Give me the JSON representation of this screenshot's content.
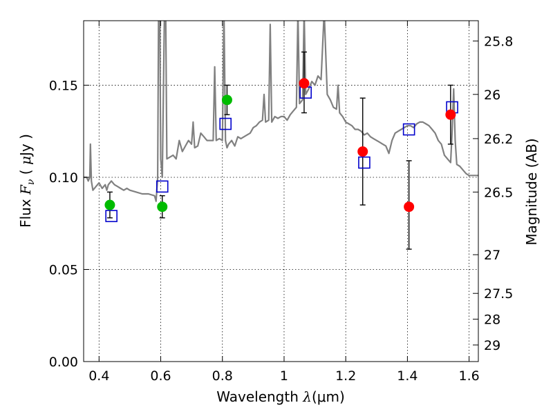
{
  "chart_data": {
    "type": "scatter",
    "xlabel": "Wavelength  λ (μm)",
    "xlabel_parts": {
      "text": "Wavelength  ",
      "symbol": "λ",
      "unit": "(μm)"
    },
    "ylabel": "Flux  Fν  ( μJy )",
    "ylabel_parts": {
      "text": "Flux  ",
      "symbol": "F",
      "subscript": "ν",
      "unit_open": " ( ",
      "unit_mu": "μ",
      "unit_rest": "Jy )"
    },
    "y2label": "Magnitude (AB)",
    "xlim": [
      0.35,
      1.63
    ],
    "ylim": [
      0.0,
      0.185
    ],
    "xticks": [
      0.4,
      0.6,
      0.8,
      1.0,
      1.2,
      1.4,
      1.6
    ],
    "xtick_labels": [
      "0.4",
      "0.6",
      "0.8",
      "1",
      "1.2",
      "1.4",
      "1.6"
    ],
    "yticks": [
      0.0,
      0.05,
      0.1,
      0.15
    ],
    "ytick_labels": [
      "0.00",
      "0.05",
      "0.10",
      "0.15"
    ],
    "y2ticks": [
      {
        "label": "25.8",
        "flux": 0.174
      },
      {
        "label": "26",
        "flux": 0.145
      },
      {
        "label": "26.2",
        "flux": 0.121
      },
      {
        "label": "26.5",
        "flux": 0.092
      },
      {
        "label": "27",
        "flux": 0.058
      },
      {
        "label": "27.5",
        "flux": 0.037
      },
      {
        "label": "28",
        "flux": 0.023
      },
      {
        "label": "29",
        "flux": 0.009
      }
    ],
    "grid": true,
    "series": [
      {
        "kind": "line",
        "color": "#808080",
        "points": [
          [
            0.35,
            0.1
          ],
          [
            0.36,
            0.1
          ],
          [
            0.365,
            0.098
          ],
          [
            0.37,
            0.1
          ],
          [
            0.372,
            0.118
          ],
          [
            0.375,
            0.098
          ],
          [
            0.38,
            0.093
          ],
          [
            0.39,
            0.095
          ],
          [
            0.4,
            0.097
          ],
          [
            0.41,
            0.094
          ],
          [
            0.42,
            0.096
          ],
          [
            0.425,
            0.093
          ],
          [
            0.43,
            0.096
          ],
          [
            0.435,
            0.097
          ],
          [
            0.44,
            0.098
          ],
          [
            0.45,
            0.096
          ],
          [
            0.46,
            0.095
          ],
          [
            0.47,
            0.094
          ],
          [
            0.48,
            0.093
          ],
          [
            0.49,
            0.094
          ],
          [
            0.5,
            0.093
          ],
          [
            0.52,
            0.092
          ],
          [
            0.54,
            0.091
          ],
          [
            0.56,
            0.091
          ],
          [
            0.58,
            0.09
          ],
          [
            0.585,
            0.087
          ],
          [
            0.59,
            0.1
          ],
          [
            0.593,
            0.19
          ],
          [
            0.597,
            0.19
          ],
          [
            0.6,
            0.11
          ],
          [
            0.605,
            0.1
          ],
          [
            0.612,
            0.19
          ],
          [
            0.616,
            0.19
          ],
          [
            0.62,
            0.11
          ],
          [
            0.64,
            0.112
          ],
          [
            0.65,
            0.11
          ],
          [
            0.66,
            0.12
          ],
          [
            0.67,
            0.114
          ],
          [
            0.68,
            0.117
          ],
          [
            0.69,
            0.12
          ],
          [
            0.7,
            0.118
          ],
          [
            0.705,
            0.13
          ],
          [
            0.71,
            0.116
          ],
          [
            0.72,
            0.117
          ],
          [
            0.73,
            0.124
          ],
          [
            0.74,
            0.122
          ],
          [
            0.75,
            0.12
          ],
          [
            0.76,
            0.12
          ],
          [
            0.77,
            0.12
          ],
          [
            0.775,
            0.16
          ],
          [
            0.78,
            0.12
          ],
          [
            0.79,
            0.121
          ],
          [
            0.8,
            0.12
          ],
          [
            0.805,
            0.19
          ],
          [
            0.81,
            0.12
          ],
          [
            0.815,
            0.116
          ],
          [
            0.82,
            0.118
          ],
          [
            0.83,
            0.12
          ],
          [
            0.84,
            0.117
          ],
          [
            0.85,
            0.122
          ],
          [
            0.86,
            0.121
          ],
          [
            0.87,
            0.122
          ],
          [
            0.88,
            0.123
          ],
          [
            0.89,
            0.124
          ],
          [
            0.9,
            0.127
          ],
          [
            0.91,
            0.128
          ],
          [
            0.92,
            0.13
          ],
          [
            0.93,
            0.131
          ],
          [
            0.935,
            0.145
          ],
          [
            0.94,
            0.13
          ],
          [
            0.95,
            0.131
          ],
          [
            0.955,
            0.183
          ],
          [
            0.96,
            0.13
          ],
          [
            0.97,
            0.133
          ],
          [
            0.98,
            0.132
          ],
          [
            0.99,
            0.133
          ],
          [
            1.0,
            0.133
          ],
          [
            1.01,
            0.131
          ],
          [
            1.02,
            0.134
          ],
          [
            1.03,
            0.136
          ],
          [
            1.04,
            0.138
          ],
          [
            1.045,
            0.19
          ],
          [
            1.05,
            0.14
          ],
          [
            1.06,
            0.142
          ],
          [
            1.065,
            0.19
          ],
          [
            1.07,
            0.145
          ],
          [
            1.08,
            0.148
          ],
          [
            1.09,
            0.152
          ],
          [
            1.1,
            0.15
          ],
          [
            1.11,
            0.155
          ],
          [
            1.12,
            0.153
          ],
          [
            1.13,
            0.19
          ],
          [
            1.14,
            0.145
          ],
          [
            1.15,
            0.142
          ],
          [
            1.16,
            0.138
          ],
          [
            1.17,
            0.137
          ],
          [
            1.175,
            0.15
          ],
          [
            1.18,
            0.135
          ],
          [
            1.19,
            0.133
          ],
          [
            1.2,
            0.13
          ],
          [
            1.21,
            0.129
          ],
          [
            1.22,
            0.128
          ],
          [
            1.23,
            0.126
          ],
          [
            1.24,
            0.126
          ],
          [
            1.25,
            0.125
          ],
          [
            1.26,
            0.123
          ],
          [
            1.27,
            0.124
          ],
          [
            1.28,
            0.122
          ],
          [
            1.29,
            0.121
          ],
          [
            1.3,
            0.12
          ],
          [
            1.31,
            0.119
          ],
          [
            1.32,
            0.118
          ],
          [
            1.33,
            0.117
          ],
          [
            1.34,
            0.113
          ],
          [
            1.35,
            0.12
          ],
          [
            1.36,
            0.124
          ],
          [
            1.37,
            0.125
          ],
          [
            1.38,
            0.126
          ],
          [
            1.39,
            0.127
          ],
          [
            1.4,
            0.128
          ],
          [
            1.41,
            0.128
          ],
          [
            1.42,
            0.127
          ],
          [
            1.43,
            0.129
          ],
          [
            1.44,
            0.13
          ],
          [
            1.45,
            0.13
          ],
          [
            1.46,
            0.129
          ],
          [
            1.47,
            0.128
          ],
          [
            1.48,
            0.126
          ],
          [
            1.49,
            0.124
          ],
          [
            1.5,
            0.12
          ],
          [
            1.51,
            0.118
          ],
          [
            1.52,
            0.112
          ],
          [
            1.53,
            0.11
          ],
          [
            1.54,
            0.108
          ],
          [
            1.545,
            0.125
          ],
          [
            1.55,
            0.148
          ],
          [
            1.555,
            0.12
          ],
          [
            1.56,
            0.107
          ],
          [
            1.57,
            0.106
          ],
          [
            1.58,
            0.104
          ],
          [
            1.59,
            0.102
          ],
          [
            1.6,
            0.101
          ],
          [
            1.61,
            0.101
          ],
          [
            1.63,
            0.101
          ]
        ]
      },
      {
        "kind": "open-square",
        "color": "#0000cc",
        "points": [
          [
            0.44,
            0.079
          ],
          [
            0.605,
            0.095
          ],
          [
            0.81,
            0.129
          ],
          [
            1.07,
            0.146
          ],
          [
            1.26,
            0.108
          ],
          [
            1.405,
            0.126
          ],
          [
            1.545,
            0.138
          ]
        ]
      },
      {
        "kind": "filled-circle",
        "color": "#00bb00",
        "points": [
          {
            "x": 0.435,
            "y": 0.085,
            "err": [
              0.078,
              0.092
            ]
          },
          {
            "x": 0.605,
            "y": 0.084,
            "err": [
              0.078,
              0.09
            ]
          },
          {
            "x": 0.815,
            "y": 0.142,
            "err": [
              0.134,
              0.15
            ]
          }
        ]
      },
      {
        "kind": "filled-circle",
        "color": "#ff0000",
        "points": [
          {
            "x": 1.065,
            "y": 0.151,
            "err": [
              0.135,
              0.168
            ]
          },
          {
            "x": 1.255,
            "y": 0.114,
            "err": [
              0.085,
              0.143
            ]
          },
          {
            "x": 1.405,
            "y": 0.084,
            "err": [
              0.061,
              0.109
            ]
          },
          {
            "x": 1.54,
            "y": 0.134,
            "err": [
              0.118,
              0.15
            ]
          }
        ]
      }
    ]
  }
}
